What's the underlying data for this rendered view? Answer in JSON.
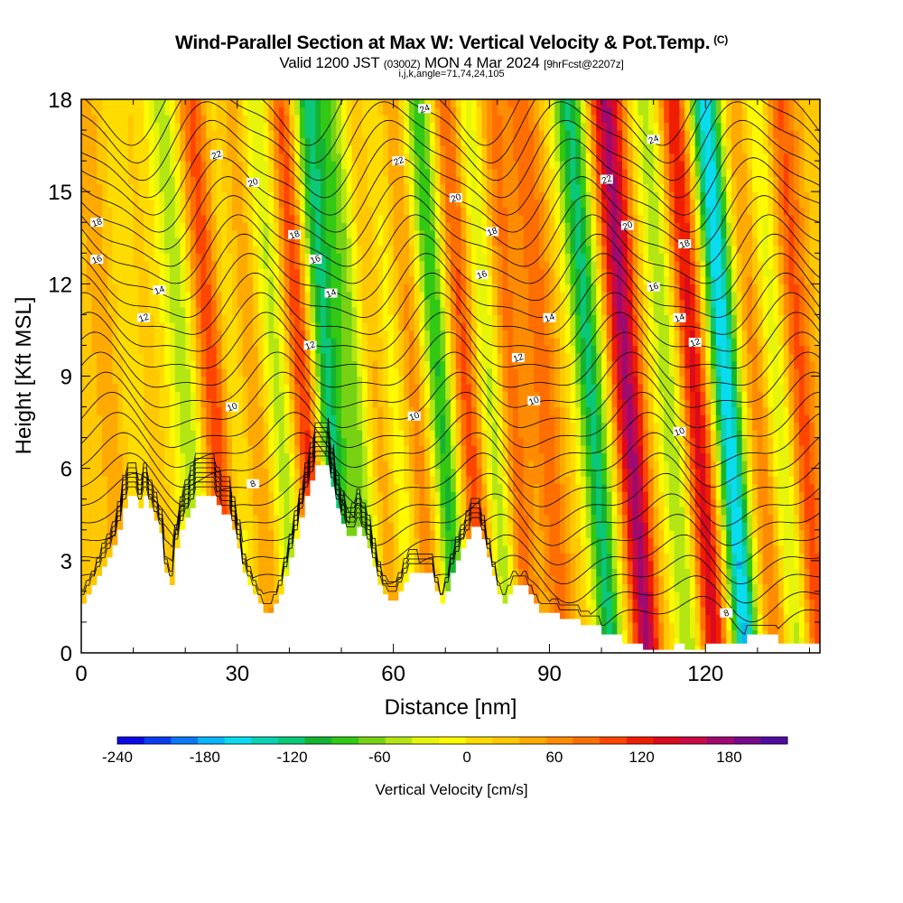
{
  "title": {
    "main": "Wind-Parallel Section at Max W: Vertical Velocity & Pot.Temp.",
    "copyright": "(C)",
    "valid_prefix": "Valid 1200 JST",
    "valid_utc": "(0300Z)",
    "valid_date": "MON 4 Mar 2024",
    "forecast": "[9hrFcst@2207z]",
    "params": "i,j,k,angle=71,74,24,105"
  },
  "chart_data": {
    "type": "heatmap",
    "xlabel": "Distance [nm]",
    "ylabel": "Height [Kft MSL]",
    "xlim": [
      0,
      142
    ],
    "ylim": [
      0,
      18
    ],
    "x_ticks": [
      0,
      30,
      60,
      90,
      120
    ],
    "y_ticks": [
      0,
      3,
      6,
      9,
      12,
      15,
      18
    ],
    "grid": false,
    "colorbar": {
      "label": "Vertical Velocity [cm/s]",
      "ticks": [
        -240,
        -180,
        -120,
        -60,
        0,
        60,
        120,
        180
      ],
      "range": [
        -240,
        220
      ],
      "colors": [
        "#0a0ae6",
        "#0a3cf0",
        "#0a78f5",
        "#0ab4fa",
        "#0adcf0",
        "#0ad2b4",
        "#0ac878",
        "#14b432",
        "#32c814",
        "#78d214",
        "#b4e614",
        "#e6f50a",
        "#fffa00",
        "#ffdc00",
        "#ffc800",
        "#ffaa00",
        "#ff8c00",
        "#ff6e00",
        "#ff4600",
        "#f01e00",
        "#dc0a1e",
        "#c80a46",
        "#a00a6e",
        "#780a8c",
        "#500aa0"
      ]
    },
    "updraft_cores": [
      {
        "x": 8,
        "w": 40
      },
      {
        "x": 27.5,
        "w": 95
      },
      {
        "x": 35,
        "w": 40
      },
      {
        "x": 45,
        "w": 115
      },
      {
        "x": 59,
        "w": 45
      },
      {
        "x": 66,
        "w": 55
      },
      {
        "x": 76,
        "w": 90
      },
      {
        "x": 84,
        "w": 80
      },
      {
        "x": 91,
        "w": 60
      },
      {
        "x": 107,
        "w": 150
      },
      {
        "x": 120,
        "w": 120
      },
      {
        "x": 132,
        "w": 55
      },
      {
        "x": 140,
        "w": 85
      }
    ],
    "downdraft_cores": [
      {
        "x": 10,
        "w": -30
      },
      {
        "x": 22,
        "w": -75
      },
      {
        "x": 31,
        "w": -45
      },
      {
        "x": 40,
        "w": -75
      },
      {
        "x": 49,
        "w": -150
      },
      {
        "x": 54.5,
        "w": -85
      },
      {
        "x": 62,
        "w": -55
      },
      {
        "x": 71,
        "w": -125
      },
      {
        "x": 81,
        "w": -95
      },
      {
        "x": 100,
        "w": -140
      },
      {
        "x": 115,
        "w": -80
      },
      {
        "x": 126,
        "w": -190
      },
      {
        "x": 136,
        "w": -75
      }
    ],
    "isentropes": {
      "labels": [
        {
          "text": "24",
          "x": 66,
          "y": 17.7
        },
        {
          "text": "24",
          "x": 110,
          "y": 16.7
        },
        {
          "text": "22",
          "x": 26,
          "y": 16.2
        },
        {
          "text": "22",
          "x": 61,
          "y": 16.0
        },
        {
          "text": "22",
          "x": 101,
          "y": 15.4
        },
        {
          "text": "20",
          "x": 33,
          "y": 15.3
        },
        {
          "text": "20",
          "x": 72,
          "y": 14.8
        },
        {
          "text": "20",
          "x": 105,
          "y": 13.9
        },
        {
          "text": "18",
          "x": 3,
          "y": 14.0
        },
        {
          "text": "18",
          "x": 41,
          "y": 13.6
        },
        {
          "text": "18",
          "x": 79,
          "y": 13.7
        },
        {
          "text": "18",
          "x": 116,
          "y": 13.3
        },
        {
          "text": "16",
          "x": 3,
          "y": 12.8
        },
        {
          "text": "16",
          "x": 45,
          "y": 12.8
        },
        {
          "text": "16",
          "x": 77,
          "y": 12.3
        },
        {
          "text": "16",
          "x": 110,
          "y": 11.9
        },
        {
          "text": "14",
          "x": 15,
          "y": 11.8
        },
        {
          "text": "14",
          "x": 48,
          "y": 11.7
        },
        {
          "text": "14",
          "x": 90,
          "y": 10.9
        },
        {
          "text": "14",
          "x": 115,
          "y": 10.9
        },
        {
          "text": "12",
          "x": 12,
          "y": 10.9
        },
        {
          "text": "12",
          "x": 44,
          "y": 10.0
        },
        {
          "text": "12",
          "x": 84,
          "y": 9.6
        },
        {
          "text": "12",
          "x": 118,
          "y": 10.1
        },
        {
          "text": "10",
          "x": 29,
          "y": 8.0
        },
        {
          "text": "10",
          "x": 64,
          "y": 7.7
        },
        {
          "text": "10",
          "x": 87,
          "y": 8.2
        },
        {
          "text": "10",
          "x": 115,
          "y": 7.2
        },
        {
          "text": "8",
          "x": 33,
          "y": 5.5
        },
        {
          "text": "8",
          "x": 124,
          "y": 1.3
        }
      ]
    },
    "terrain_top": [
      [
        0,
        1.6
      ],
      [
        1,
        1.6
      ],
      [
        1,
        1.9
      ],
      [
        2,
        1.9
      ],
      [
        2,
        2.2
      ],
      [
        3,
        2.2
      ],
      [
        3,
        2.5
      ],
      [
        4,
        2.5
      ],
      [
        4,
        2.8
      ],
      [
        5,
        2.8
      ],
      [
        5,
        3.1
      ],
      [
        6,
        3.1
      ],
      [
        6,
        3.5
      ],
      [
        7,
        3.5
      ],
      [
        7,
        4.0
      ],
      [
        8,
        4.0
      ],
      [
        8,
        4.7
      ],
      [
        9,
        4.7
      ],
      [
        9,
        5.1
      ],
      [
        11,
        5.1
      ],
      [
        11,
        4.7
      ],
      [
        12,
        4.7
      ],
      [
        12,
        5.1
      ],
      [
        13,
        5.1
      ],
      [
        13,
        4.7
      ],
      [
        14,
        4.7
      ],
      [
        14,
        4.3
      ],
      [
        15,
        4.3
      ],
      [
        15,
        3.9
      ],
      [
        16,
        3.9
      ],
      [
        16,
        2.6
      ],
      [
        17,
        2.6
      ],
      [
        17,
        2.2
      ],
      [
        18,
        2.2
      ],
      [
        18,
        3.4
      ],
      [
        19,
        3.4
      ],
      [
        19,
        4.0
      ],
      [
        20,
        4.0
      ],
      [
        20,
        4.4
      ],
      [
        21,
        4.4
      ],
      [
        21,
        4.7
      ],
      [
        22,
        4.7
      ],
      [
        22,
        5.1
      ],
      [
        26,
        5.1
      ],
      [
        26,
        4.8
      ],
      [
        27,
        4.8
      ],
      [
        27,
        4.5
      ],
      [
        29,
        4.5
      ],
      [
        29,
        4.0
      ],
      [
        30,
        4.0
      ],
      [
        30,
        3.4
      ],
      [
        31,
        3.4
      ],
      [
        31,
        2.6
      ],
      [
        32,
        2.6
      ],
      [
        32,
        2.2
      ],
      [
        33,
        2.2
      ],
      [
        33,
        1.9
      ],
      [
        34,
        1.9
      ],
      [
        34,
        1.6
      ],
      [
        35,
        1.6
      ],
      [
        35,
        1.3
      ],
      [
        37,
        1.3
      ],
      [
        37,
        1.6
      ],
      [
        38,
        1.6
      ],
      [
        38,
        1.9
      ],
      [
        39,
        1.9
      ],
      [
        39,
        2.5
      ],
      [
        40,
        2.5
      ],
      [
        40,
        3.1
      ],
      [
        41,
        3.1
      ],
      [
        41,
        3.7
      ],
      [
        42,
        3.7
      ],
      [
        42,
        4.4
      ],
      [
        43,
        4.4
      ],
      [
        43,
        5.1
      ],
      [
        44,
        5.1
      ],
      [
        44,
        5.6
      ],
      [
        45,
        5.6
      ],
      [
        45,
        6.1
      ],
      [
        48,
        6.1
      ],
      [
        48,
        5.4
      ],
      [
        49,
        5.4
      ],
      [
        49,
        4.7
      ],
      [
        50,
        4.7
      ],
      [
        50,
        4.2
      ],
      [
        51,
        4.2
      ],
      [
        51,
        3.8
      ],
      [
        53,
        3.8
      ],
      [
        53,
        4.1
      ],
      [
        54,
        4.1
      ],
      [
        54,
        3.8
      ],
      [
        55,
        3.8
      ],
      [
        55,
        3.4
      ],
      [
        56,
        3.4
      ],
      [
        56,
        2.8
      ],
      [
        57,
        2.8
      ],
      [
        57,
        2.2
      ],
      [
        58,
        2.2
      ],
      [
        58,
        1.9
      ],
      [
        59,
        1.9
      ],
      [
        59,
        1.7
      ],
      [
        61,
        1.7
      ],
      [
        61,
        2.0
      ],
      [
        62,
        2.0
      ],
      [
        62,
        2.3
      ],
      [
        63,
        2.3
      ],
      [
        63,
        2.6
      ],
      [
        68,
        2.6
      ],
      [
        68,
        2.0
      ],
      [
        69,
        2.0
      ],
      [
        69,
        1.6
      ],
      [
        70,
        1.6
      ],
      [
        70,
        2.0
      ],
      [
        71,
        2.0
      ],
      [
        71,
        2.6
      ],
      [
        72,
        2.6
      ],
      [
        72,
        3.0
      ],
      [
        73,
        3.0
      ],
      [
        73,
        3.4
      ],
      [
        74,
        3.4
      ],
      [
        74,
        3.7
      ],
      [
        75,
        3.7
      ],
      [
        75,
        4.1
      ],
      [
        77,
        4.1
      ],
      [
        77,
        3.7
      ],
      [
        78,
        3.7
      ],
      [
        78,
        3.1
      ],
      [
        79,
        3.1
      ],
      [
        79,
        2.5
      ],
      [
        80,
        2.5
      ],
      [
        80,
        1.9
      ],
      [
        81,
        1.9
      ],
      [
        81,
        1.6
      ],
      [
        82,
        1.6
      ],
      [
        82,
        1.9
      ],
      [
        83,
        1.9
      ],
      [
        83,
        2.2
      ],
      [
        86,
        2.2
      ],
      [
        86,
        1.9
      ],
      [
        87,
        1.9
      ],
      [
        87,
        1.6
      ],
      [
        88,
        1.6
      ],
      [
        88,
        1.3
      ],
      [
        92,
        1.3
      ],
      [
        92,
        1.1
      ],
      [
        96,
        1.1
      ],
      [
        96,
        0.9
      ],
      [
        100,
        0.9
      ],
      [
        100,
        0.6
      ],
      [
        104,
        0.6
      ],
      [
        104,
        0.3
      ],
      [
        108,
        0.3
      ],
      [
        108,
        0.1
      ],
      [
        114,
        0.1
      ],
      [
        114,
        0.3
      ],
      [
        116,
        0.3
      ],
      [
        116,
        0.1
      ],
      [
        120,
        0.1
      ],
      [
        120,
        0.3
      ],
      [
        128,
        0.3
      ],
      [
        128,
        0.6
      ],
      [
        134,
        0.6
      ],
      [
        134,
        0.3
      ],
      [
        142,
        0.3
      ]
    ]
  }
}
